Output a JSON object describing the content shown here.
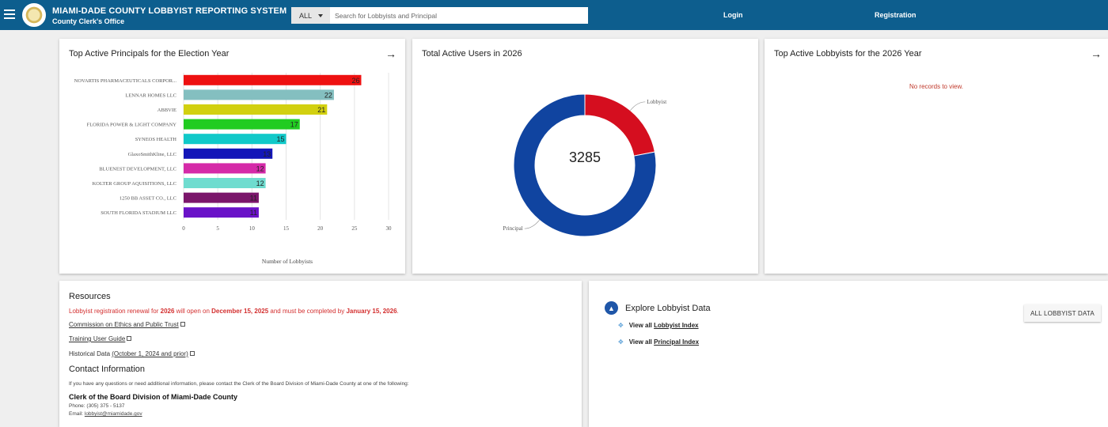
{
  "header": {
    "title": "MIAMI-DADE COUNTY LOBBYIST REPORTING SYSTEM",
    "subtitle": "County Clerk's Office",
    "search_scope": "ALL",
    "search_placeholder": "Search for Lobbyists and Principal",
    "login_label": "Login",
    "registration_label": "Registration",
    "bg_color": "#0d5e8e"
  },
  "principals_card": {
    "title": "Top Active Principals for the Election Year",
    "arrow": "→"
  },
  "users_card": {
    "title": "Total Active Users in 2026",
    "total": "3285"
  },
  "lobbyists_card": {
    "title": "Top Active Lobbyists for the 2026 Year",
    "arrow": "→",
    "empty_message": "No records to view."
  },
  "chart_data": [
    {
      "type": "bar",
      "orientation": "horizontal",
      "categories": [
        "NOVARTIS PHARMACEUTICALS CORPOR...",
        "LENNAR HOMES LLC",
        "ABBVIE",
        "FLORIDA POWER & LIGHT COMPANY",
        "SYNEOS HEALTH",
        "GlaxoSmithKline, LLC",
        "BLUENEST DEVELOPMENT, LLC",
        "KOLTER GROUP AQUISITIONS, LLC",
        "1250 BB ASSET CO., LLC",
        "SOUTH FLORIDA STADIUM LLC"
      ],
      "values": [
        26,
        22,
        21,
        17,
        15,
        13,
        12,
        12,
        11,
        11
      ],
      "colors": [
        "#ee1111",
        "#84bfc0",
        "#d2d010",
        "#21cc21",
        "#10c9c9",
        "#1316b8",
        "#d52aa8",
        "#6fdccf",
        "#7b166b",
        "#6a12c8"
      ],
      "xlabel": "Number of Lobbyists",
      "xticks": [
        0,
        5,
        10,
        15,
        20,
        25,
        30
      ],
      "xlim": [
        0,
        30
      ],
      "grid": true
    },
    {
      "type": "pie",
      "style": "donut",
      "labels": [
        "Lobbyist",
        "Principal"
      ],
      "values": [
        0.22,
        0.78
      ],
      "colors": [
        "#d50e1f",
        "#1044a0"
      ],
      "center_text": "3285"
    }
  ],
  "resources": {
    "heading": "Resources",
    "notice_pre": "Lobbyist registration renewal for ",
    "notice_year": "2026",
    "notice_mid": " will open on ",
    "notice_date1": "December 15, 2025",
    "notice_mid2": " and must be completed by ",
    "notice_date2": "January 15, 2026",
    "notice_end": ".",
    "link_ethics": "Commission on Ethics and Public Trust",
    "link_guide": "Training User Guide",
    "historical_label": "Historical Data ",
    "historical_link": "(October 1, 2024 and prior)",
    "contact_heading": "Contact Information",
    "contact_text": "If you have any questions or need additional information, please contact the Clerk of the Board Division of Miami-Dade County at one of the following:",
    "clerk_name": "Clerk of the Board Division of Miami-Dade County",
    "phone": "Phone: (305) 375 - 5137",
    "email_label": "Email: ",
    "email": "lobbyist@miamidade.gov"
  },
  "explore": {
    "title": "Explore Lobbyist Data",
    "view_all": "View all ",
    "lobbyist_index": "Lobbyist Index",
    "principal_index": "Principal Index",
    "all_button": "ALL LOBBYIST DATA"
  }
}
